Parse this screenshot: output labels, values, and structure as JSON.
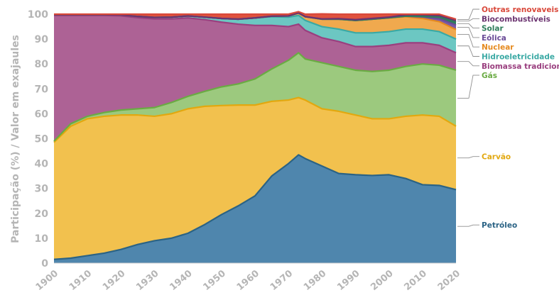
{
  "chart_data": {
    "type": "area",
    "stacked": true,
    "ylabel": "Participação (%) / Valor em exajaules",
    "xlabel": "",
    "ylim": [
      0,
      100
    ],
    "xlim": [
      1900,
      2020
    ],
    "y_ticks": [
      0,
      10,
      20,
      30,
      40,
      50,
      60,
      70,
      80,
      90,
      100
    ],
    "x_ticks": [
      1900,
      1910,
      1920,
      1930,
      1940,
      1950,
      1960,
      1970,
      1980,
      1990,
      2000,
      2010,
      2020
    ],
    "grid": false,
    "legend_placement": "right",
    "x": [
      1900,
      1905,
      1910,
      1915,
      1920,
      1925,
      1930,
      1935,
      1940,
      1945,
      1950,
      1955,
      1960,
      1965,
      1970,
      1973,
      1975,
      1980,
      1985,
      1990,
      1995,
      2000,
      2005,
      2010,
      2015,
      2020
    ],
    "series": [
      {
        "name": "Petróleo",
        "color": "#4f86ad",
        "values": [
          1.5,
          2.0,
          3.0,
          4.0,
          5.5,
          7.5,
          9.0,
          10.0,
          12.0,
          15.5,
          19.5,
          23.0,
          27.0,
          35.0,
          40.0,
          43.5,
          42.0,
          39.0,
          36.0,
          35.5,
          35.2,
          35.5,
          34.0,
          31.5,
          31.2,
          29.5
        ]
      },
      {
        "name": "Carvão",
        "color": "#f2c14e",
        "values": [
          47.0,
          53.0,
          55.0,
          55.0,
          54.0,
          52.0,
          50.0,
          50.0,
          50.0,
          47.5,
          43.8,
          40.5,
          36.5,
          30.0,
          25.5,
          23.0,
          23.5,
          23.0,
          25.0,
          24.0,
          22.8,
          22.5,
          25.0,
          28.0,
          27.8,
          25.5
        ]
      },
      {
        "name": "Gás",
        "color": "#9cc97e",
        "values": [
          0.5,
          1.0,
          1.0,
          1.5,
          2.0,
          2.5,
          3.5,
          4.5,
          5.0,
          6.0,
          7.5,
          8.5,
          10.5,
          13.0,
          16.0,
          18.0,
          16.5,
          18.5,
          18.0,
          18.0,
          19.0,
          19.5,
          20.0,
          20.5,
          20.5,
          22.5
        ]
      },
      {
        "name": "Biomassa tradicional",
        "color": "#ad6295",
        "values": [
          50.5,
          43.5,
          40.5,
          39.0,
          37.8,
          36.6,
          35.6,
          33.6,
          31.5,
          28.8,
          26.0,
          24.0,
          21.5,
          17.5,
          13.5,
          11.5,
          11.5,
          10.0,
          10.0,
          9.5,
          10.0,
          10.0,
          9.5,
          8.5,
          8.0,
          7.0
        ]
      },
      {
        "name": "Hidroeletricidade",
        "color": "#6cc7c2",
        "values": [
          0.3,
          0.3,
          0.3,
          0.3,
          0.4,
          0.5,
          0.6,
          0.7,
          0.8,
          1.0,
          1.5,
          2.0,
          3.0,
          3.5,
          3.8,
          3.5,
          4.0,
          4.5,
          5.0,
          5.5,
          5.5,
          5.5,
          5.5,
          5.5,
          5.5,
          5.5
        ]
      },
      {
        "name": "Nuclear",
        "color": "#f0a94e",
        "values": [
          0,
          0,
          0,
          0,
          0,
          0,
          0,
          0,
          0,
          0,
          0,
          0,
          0,
          0.2,
          0.5,
          1.0,
          1.5,
          3.0,
          4.0,
          5.0,
          5.5,
          5.5,
          5.0,
          4.3,
          4.0,
          3.8
        ]
      },
      {
        "name": "Eólica",
        "color": "#7b5aa6",
        "values": [
          0,
          0,
          0,
          0,
          0,
          0,
          0,
          0,
          0,
          0,
          0,
          0,
          0,
          0,
          0,
          0,
          0,
          0,
          0,
          0,
          0,
          0.05,
          0.2,
          0.6,
          1.2,
          1.8
        ]
      },
      {
        "name": "Solar",
        "color": "#2e7d5b",
        "values": [
          0,
          0,
          0,
          0,
          0,
          0,
          0,
          0,
          0,
          0,
          0,
          0,
          0,
          0,
          0,
          0,
          0,
          0,
          0,
          0,
          0,
          0,
          0.05,
          0.2,
          0.6,
          1.2
        ]
      },
      {
        "name": "Biocombustíveis",
        "color": "#6b3370",
        "values": [
          0,
          0,
          0,
          0,
          0,
          0,
          0,
          0,
          0,
          0,
          0,
          0,
          0,
          0,
          0,
          0,
          0,
          0.1,
          0.2,
          0.3,
          0.3,
          0.3,
          0.5,
          0.8,
          0.9,
          0.9
        ]
      },
      {
        "name": "Outras renovaveis",
        "color": "#e0523e",
        "values": [
          0.2,
          0.2,
          0.2,
          0.2,
          0.3,
          0.9,
          1.3,
          1.2,
          0.7,
          1.2,
          1.7,
          2.0,
          1.5,
          0.8,
          0.7,
          0.5,
          1.0,
          2.0,
          1.8,
          2.2,
          1.7,
          1.2,
          0.25,
          0.1,
          0.3,
          0.3
        ]
      }
    ],
    "legend_order": [
      "Outras renovaveis",
      "Biocombustíveis",
      "Solar",
      "Eólica",
      "Nuclear",
      "Hidroeletricidade",
      "Biomassa tradicional",
      "Gás",
      "Carvão",
      "Petróleo"
    ],
    "label_colors": {
      "Outras renovaveis": "#d9483a",
      "Biocombustíveis": "#6b3370",
      "Solar": "#2e7d5b",
      "Eólica": "#6a4b97",
      "Nuclear": "#e58a1f",
      "Hidroeletricidade": "#3aa9a4",
      "Biomassa tradicional": "#9a3f7f",
      "Gás": "#6aab43",
      "Carvão": "#e2a80f",
      "Petróleo": "#2b6385"
    }
  }
}
